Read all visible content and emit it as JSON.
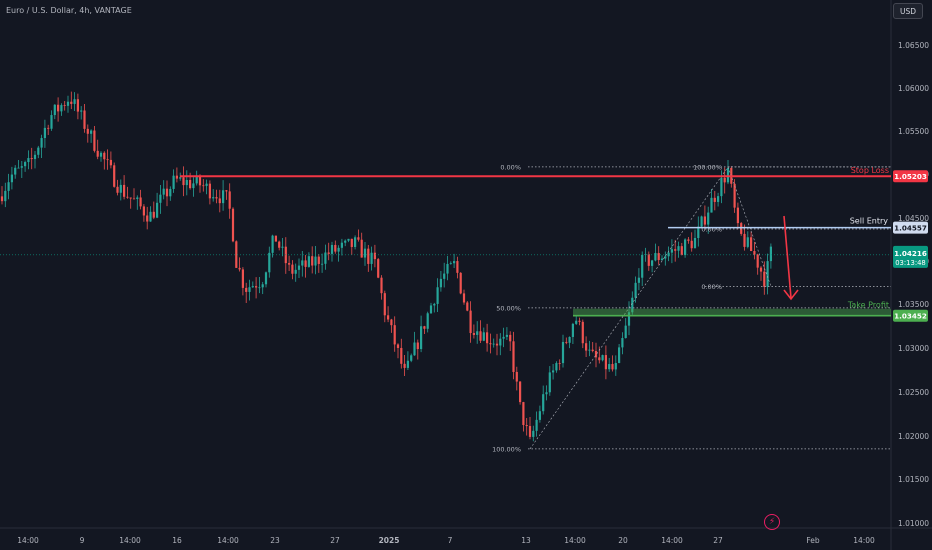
{
  "header": {
    "title": "Euro / U.S. Dollar, 4h, VANTAGE",
    "currency_button": "USD"
  },
  "colors": {
    "background": "#131722",
    "bull": "#26a69a",
    "bear": "#ef5350",
    "stop_loss": "#f23645",
    "entry": "#b2cdf2",
    "take_profit": "#4caf50",
    "price_tag": "#089981"
  },
  "chart_data": {
    "type": "candlestick",
    "y_ticks": [
      "1.06500",
      "1.06000",
      "1.05500",
      "1.05000",
      "1.04500",
      "1.04000",
      "1.03500",
      "1.03000",
      "1.02500",
      "1.02000",
      "1.01500",
      "1.01000"
    ],
    "x_ticks": [
      "14:00",
      "9",
      "14:00",
      "16",
      "14:00",
      "23",
      "27",
      "2025",
      "7",
      "13",
      "14:00",
      "20",
      "14:00",
      "27",
      "Feb",
      "14:00"
    ],
    "ylim": [
      1.0085,
      1.0685
    ],
    "levels": [
      {
        "name": "stop_loss",
        "label": "Stop Loss",
        "price": 1.05203,
        "tag": "1.05203"
      },
      {
        "name": "sell_entry",
        "label": "Sell Entry",
        "price": 1.04557,
        "tag": "1.04557"
      },
      {
        "name": "take_profit",
        "label": "Take Profit",
        "price": 1.03452,
        "zone_top": 1.0354,
        "tag": "1.03452"
      }
    ],
    "current_price": {
      "price": 1.04216,
      "tag": "1.04216",
      "countdown": "03:13:48"
    },
    "fib_left": [
      {
        "label": "0.00%",
        "price": 1.0532
      },
      {
        "label": "50.00%",
        "price": 1.0355
      },
      {
        "label": "100.00%",
        "price": 1.0178
      }
    ],
    "fib_right": [
      {
        "label": "100.00%",
        "price": 1.0532
      },
      {
        "label": "0.00%",
        "price": 1.0454
      },
      {
        "label": "0.00%",
        "price": 1.0382
      }
    ],
    "waypoints": [
      [
        0,
        1.0495
      ],
      [
        10,
        1.052
      ],
      [
        30,
        1.0535
      ],
      [
        50,
        1.0595
      ],
      [
        70,
        1.062
      ],
      [
        95,
        1.056
      ],
      [
        120,
        1.0505
      ],
      [
        150,
        1.047
      ],
      [
        175,
        1.0515
      ],
      [
        200,
        1.051
      ],
      [
        228,
        1.049
      ],
      [
        232,
        1.046
      ],
      [
        236,
        1.0415
      ],
      [
        245,
        1.038
      ],
      [
        262,
        1.039
      ],
      [
        275,
        1.0445
      ],
      [
        290,
        1.04
      ],
      [
        310,
        1.041
      ],
      [
        330,
        1.0425
      ],
      [
        355,
        1.0435
      ],
      [
        375,
        1.041
      ],
      [
        385,
        1.035
      ],
      [
        405,
        1.027
      ],
      [
        420,
        1.032
      ],
      [
        440,
        1.039
      ],
      [
        455,
        1.041
      ],
      [
        470,
        1.0335
      ],
      [
        490,
        1.0315
      ],
      [
        510,
        1.031
      ],
      [
        520,
        1.023
      ],
      [
        530,
        1.0185
      ],
      [
        545,
        1.025
      ],
      [
        565,
        1.031
      ],
      [
        575,
        1.0345
      ],
      [
        590,
        1.0295
      ],
      [
        615,
        1.0275
      ],
      [
        630,
        1.035
      ],
      [
        640,
        1.041
      ],
      [
        660,
        1.042
      ],
      [
        680,
        1.043
      ],
      [
        695,
        1.044
      ],
      [
        710,
        1.0485
      ],
      [
        728,
        1.0528
      ],
      [
        738,
        1.045
      ],
      [
        755,
        1.042
      ],
      [
        765,
        1.039
      ],
      [
        771,
        1.0425
      ]
    ]
  }
}
